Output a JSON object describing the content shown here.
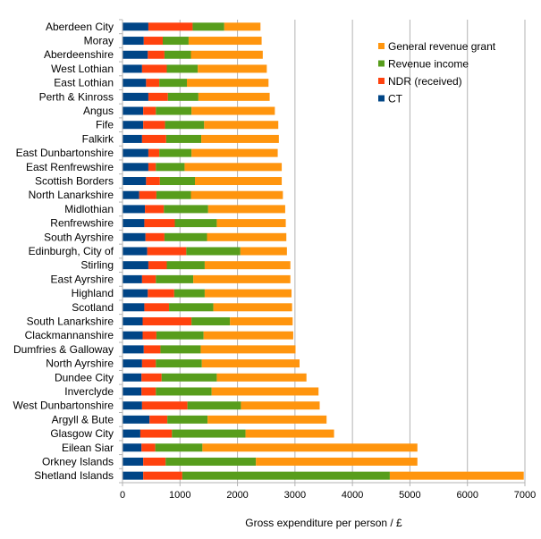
{
  "chart_data": {
    "type": "bar",
    "orientation": "horizontal",
    "stacked": true,
    "title": "",
    "xlabel": "Gross expenditure per person / £",
    "ylabel": "",
    "xlim": [
      0,
      7000
    ],
    "xticks": [
      0,
      1000,
      2000,
      3000,
      4000,
      5000,
      6000,
      7000
    ],
    "grid": true,
    "legend_position": "top-right",
    "categories": [
      "Aberdeen City",
      "Moray",
      "Aberdeenshire",
      "West Lothian",
      "East Lothian",
      "Perth & Kinross",
      "Angus",
      "Fife",
      "Falkirk",
      "East Dunbartonshire",
      "East Renfrewshire",
      "Scottish Borders",
      "North Lanarkshire",
      "Midlothian",
      "Renfrewshire",
      "South Ayrshire",
      "Edinburgh, City of",
      "Stirling",
      "East Ayrshire",
      "Highland",
      "Scotland",
      "South Lanarkshire",
      "Clackmannanshire",
      "Dumfries & Galloway",
      "North Ayrshire",
      "Dundee City",
      "Inverclyde",
      "West Dunbartonshire",
      "Argyll & Bute",
      "Glasgow City",
      "Eilean Siar",
      "Orkney Islands",
      "Shetland Islands"
    ],
    "series": [
      {
        "name": "CT",
        "color": "#004586",
        "values": [
          450,
          370,
          440,
          340,
          410,
          450,
          360,
          360,
          340,
          450,
          450,
          410,
          290,
          390,
          380,
          400,
          430,
          450,
          340,
          440,
          380,
          350,
          350,
          370,
          340,
          330,
          330,
          340,
          470,
          310,
          330,
          360,
          360
        ]
      },
      {
        "name": "NDR (received)",
        "color": "#ff420e",
        "values": [
          770,
          330,
          290,
          430,
          230,
          340,
          220,
          380,
          420,
          190,
          130,
          240,
          300,
          330,
          530,
          330,
          680,
          320,
          240,
          460,
          430,
          850,
          240,
          290,
          240,
          350,
          250,
          790,
          310,
          550,
          240,
          390,
          680
        ]
      },
      {
        "name": "Revenue income",
        "color": "#579d1c",
        "values": [
          550,
          450,
          460,
          540,
          480,
          530,
          620,
          680,
          610,
          560,
          500,
          610,
          600,
          770,
          730,
          740,
          940,
          660,
          650,
          530,
          770,
          670,
          820,
          700,
          800,
          960,
          970,
          930,
          700,
          1280,
          820,
          1570,
          3610
        ]
      },
      {
        "name": "General revenue grant",
        "color": "#ff950e",
        "values": [
          630,
          1270,
          1250,
          1200,
          1420,
          1240,
          1450,
          1290,
          1350,
          1500,
          1690,
          1510,
          1600,
          1340,
          1200,
          1380,
          810,
          1490,
          1690,
          1510,
          1370,
          1090,
          1560,
          1650,
          1700,
          1560,
          1860,
          1370,
          2070,
          1540,
          3740,
          2810,
          2330
        ]
      }
    ],
    "legend_order": [
      "General revenue grant",
      "Revenue income",
      "NDR (received)",
      "CT"
    ]
  }
}
